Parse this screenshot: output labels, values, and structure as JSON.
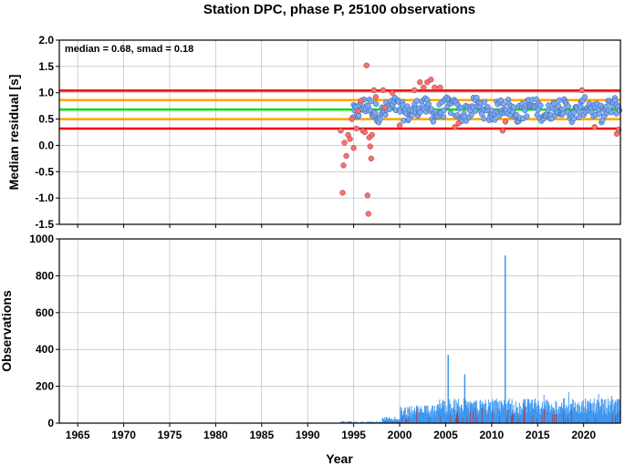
{
  "chart_data": [
    {
      "type": "scatter",
      "title": "Station DPC, phase P, 25100 observations",
      "ylabel": "Median residual [s]",
      "xlabel": "",
      "xlim": [
        1963,
        2024
      ],
      "ylim": [
        -1.5,
        2.0
      ],
      "yticks": [
        "-1.5",
        "-1.0",
        "-0.5",
        "0.0",
        "0.5",
        "1.0",
        "1.5",
        "2.0"
      ],
      "annotation": "median = 0.68, smad = 0.18",
      "grid": true,
      "reference_lines": [
        {
          "value": 0.68,
          "color": "#00dd00",
          "role": "median"
        },
        {
          "value": 0.86,
          "color": "#ffa500",
          "role": "+1 smad"
        },
        {
          "value": 0.5,
          "color": "#ffa500",
          "role": "-1 smad"
        },
        {
          "value": 1.04,
          "color": "#ee0000",
          "role": "+2 smad"
        },
        {
          "value": 0.32,
          "color": "#ee0000",
          "role": "-2 smad"
        }
      ],
      "colors": {
        "inlier": "#7aaaf5",
        "outlier": "#f87070"
      },
      "outliers": [
        [
          1993.6,
          0.28
        ],
        [
          1993.8,
          -0.9
        ],
        [
          1993.9,
          -0.38
        ],
        [
          1994.0,
          0.05
        ],
        [
          1994.2,
          -0.2
        ],
        [
          1994.4,
          0.2
        ],
        [
          1994.6,
          0.12
        ],
        [
          1994.8,
          0.5
        ],
        [
          1995.0,
          -0.05
        ],
        [
          1995.3,
          0.32
        ],
        [
          1995.5,
          0.65
        ],
        [
          1995.8,
          0.85
        ],
        [
          1996.0,
          0.28
        ],
        [
          1996.2,
          0.25
        ],
        [
          1996.4,
          1.52
        ],
        [
          1996.5,
          -0.95
        ],
        [
          1996.6,
          -1.3
        ],
        [
          1996.7,
          0.15
        ],
        [
          1996.8,
          -0.02
        ],
        [
          1996.9,
          -0.25
        ],
        [
          1997.0,
          0.2
        ],
        [
          1997.2,
          1.05
        ],
        [
          1997.4,
          0.92
        ],
        [
          1998.2,
          1.05
        ],
        [
          1998.4,
          0.72
        ],
        [
          1999.2,
          1.0
        ],
        [
          2000.0,
          0.38
        ],
        [
          2001.6,
          1.05
        ],
        [
          2002.2,
          1.2
        ],
        [
          2002.6,
          1.1
        ],
        [
          2003.0,
          1.2
        ],
        [
          2003.4,
          1.25
        ],
        [
          2003.8,
          1.1
        ],
        [
          2004.4,
          1.1
        ],
        [
          2006.0,
          0.35
        ],
        [
          2006.4,
          0.42
        ],
        [
          2011.2,
          0.28
        ],
        [
          2011.5,
          0.45
        ],
        [
          2019.8,
          1.05
        ],
        [
          2021.2,
          0.35
        ],
        [
          2023.6,
          0.22
        ],
        [
          2023.8,
          0.3
        ]
      ],
      "inlier_series": {
        "x_start": 1994.9,
        "x_end": 2023.9,
        "count": 320
      }
    },
    {
      "type": "bar",
      "ylabel": "Observations",
      "xlabel": "Year",
      "xlim": [
        1963,
        2024
      ],
      "ylim": [
        0,
        1000
      ],
      "xticks": [
        "1965",
        "1970",
        "1975",
        "1980",
        "1985",
        "1990",
        "1995",
        "2000",
        "2005",
        "2010",
        "2015",
        "2020"
      ],
      "yticks": [
        "0",
        "200",
        "400",
        "600",
        "800",
        "1000"
      ],
      "grid": true,
      "colors": {
        "inlier": "#3c96f0",
        "outlier": "#cc2222"
      },
      "spikes": [
        {
          "x": 2005.2,
          "value": 370
        },
        {
          "x": 2007.0,
          "value": 265
        },
        {
          "x": 2011.4,
          "value": 910
        }
      ],
      "series_range": {
        "x_start": 1993.5,
        "x_end": 2023.9,
        "typical_max": 170
      }
    }
  ]
}
